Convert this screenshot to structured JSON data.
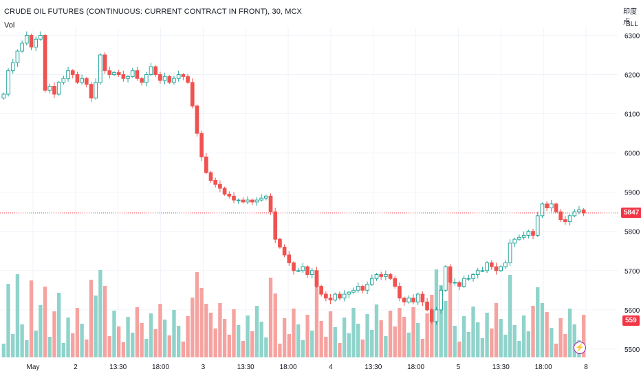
{
  "header": {
    "title": "CRUDE OIL FUTURES (CONTINUOUS: CURRENT CONTRACT IN FRONT), 30, MCX",
    "volume_label": "Vol",
    "corner_top": "印度卢",
    "corner_sub": "BLL"
  },
  "badges": {
    "last_price": "5847",
    "volume": "559"
  },
  "icons": [
    "lightning-icon"
  ],
  "colors": {
    "up": "#26a69a",
    "down": "#ef5350",
    "vol_up": "#8fd3cb",
    "vol_down": "#f5a3a0",
    "price_line": "#f23645",
    "grid": "#f0f3fa",
    "text": "#131722"
  },
  "chart_data": {
    "type": "candlestick",
    "title": "CRUDE OIL FUTURES (CONTINUOUS: CURRENT CONTRACT IN FRONT), 30, MCX",
    "y_axis": {
      "ticks": [
        6300,
        6200,
        6100,
        6000,
        5900,
        5800,
        5700,
        5600,
        5500
      ],
      "ylim": [
        5470,
        6320
      ],
      "position": "right"
    },
    "x_axis": {
      "ticks": [
        "May",
        "2",
        "13:30",
        "18:00",
        "3",
        "13:30",
        "18:00",
        "4",
        "13:30",
        "18:00",
        "5",
        "13:30",
        "18:00",
        "8"
      ]
    },
    "last_price": 5847,
    "last_volume": 559,
    "grid": true,
    "series": [
      {
        "name": "price",
        "path": [
          6150,
          6210,
          6230,
          6260,
          6280,
          6300,
          6270,
          6290,
          6300,
          6160,
          6170,
          6150,
          6180,
          6190,
          6210,
          6200,
          6180,
          6190,
          6175,
          6140,
          6180,
          6250,
          6210,
          6200,
          6205,
          6200,
          6190,
          6195,
          6210,
          6190,
          6180,
          6200,
          6220,
          6200,
          6185,
          6195,
          6180,
          6190,
          6200,
          6195,
          6180,
          6120,
          6050,
          5990,
          5950,
          5930,
          5920,
          5910,
          5895,
          5890,
          5880,
          5880,
          5875,
          5880,
          5875,
          5880,
          5885,
          5890,
          5850,
          5780,
          5760,
          5740,
          5720,
          5700,
          5700,
          5710,
          5690,
          5700,
          5660,
          5640,
          5630,
          5625,
          5640,
          5630,
          5640,
          5645,
          5650,
          5660,
          5650,
          5665,
          5680,
          5690,
          5685,
          5690,
          5680,
          5660,
          5630,
          5620,
          5630,
          5620,
          5640,
          5620,
          5600,
          5570,
          5600,
          5650,
          5710,
          5670,
          5670,
          5660,
          5680,
          5680,
          5690,
          5700,
          5700,
          5720,
          5710,
          5700,
          5710,
          5720,
          5770,
          5780,
          5785,
          5790,
          5800,
          5790,
          5840,
          5870,
          5860,
          5870,
          5850,
          5830,
          5825,
          5840,
          5850,
          5855,
          5847
        ]
      }
    ]
  }
}
